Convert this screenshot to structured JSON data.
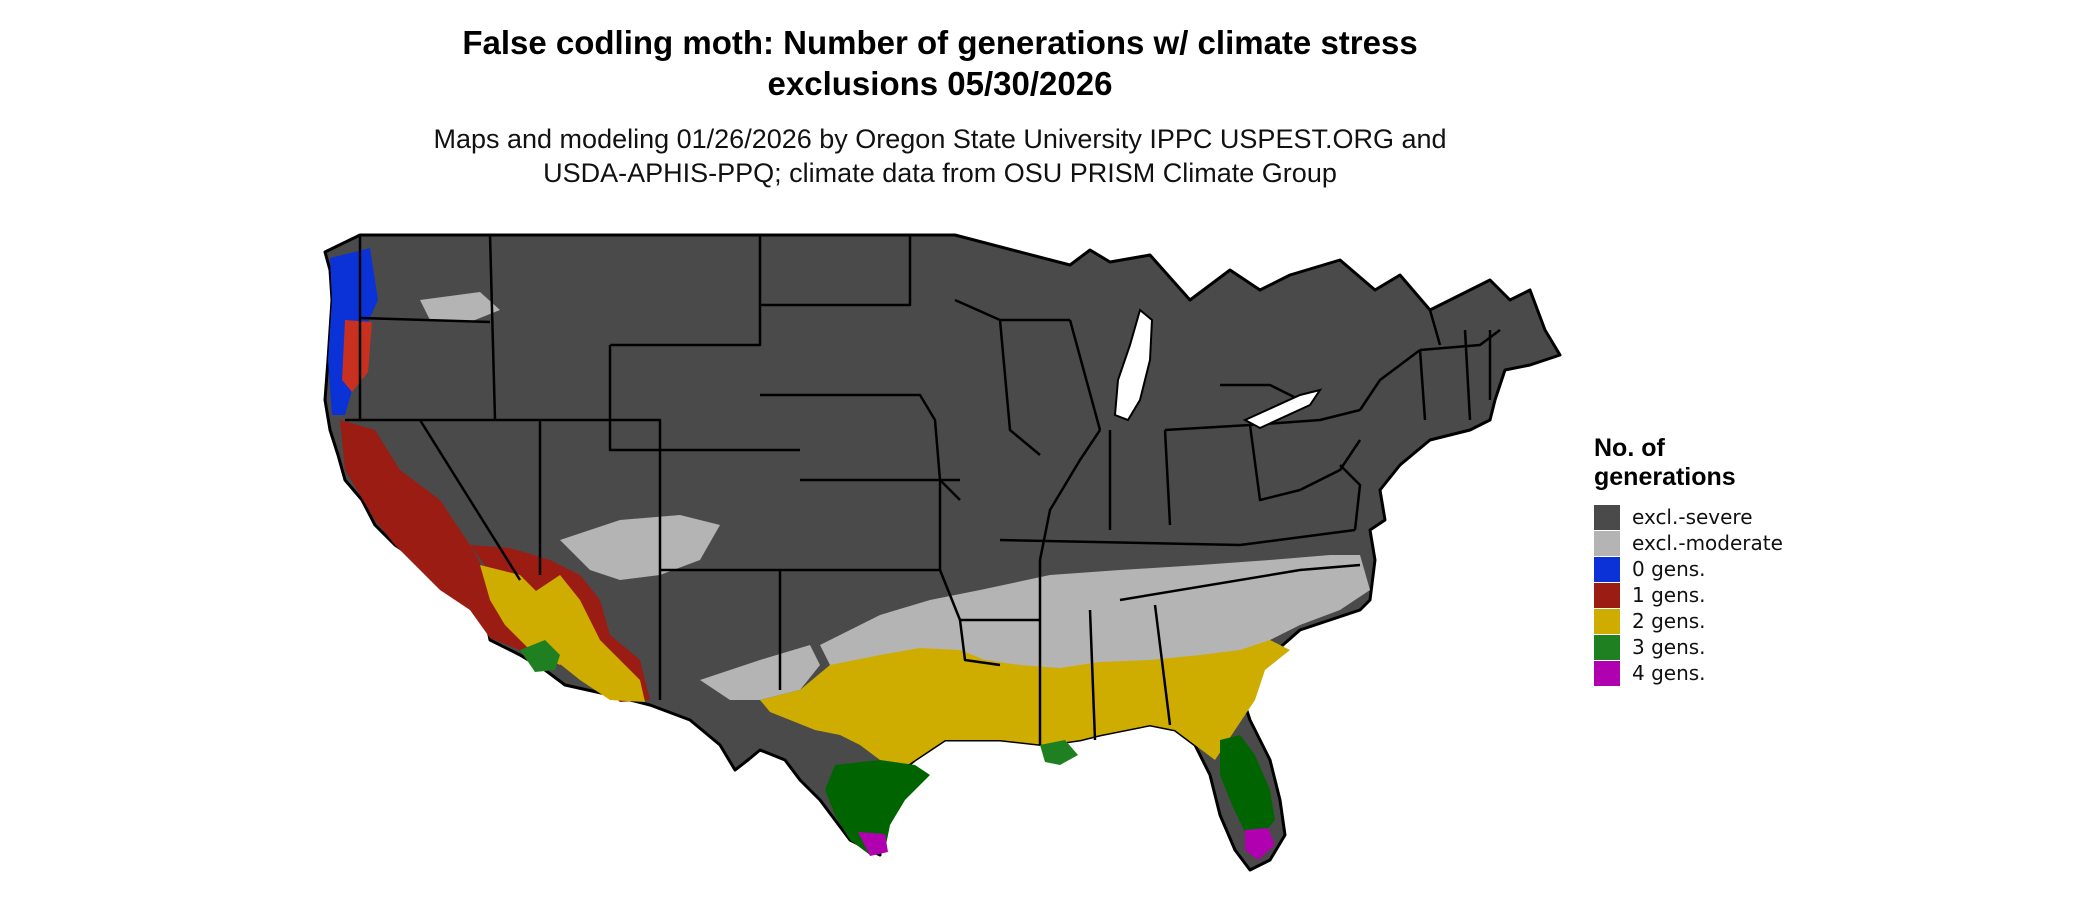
{
  "title_line1": "False codling moth: Number of generations w/ climate stress",
  "title_line2": "exclusions 05/30/2026",
  "subtitle_line1": "Maps and modeling 01/26/2026 by Oregon State University IPPC USPEST.ORG and",
  "subtitle_line2": "USDA-APHIS-PPQ; climate data from OSU PRISM Climate Group",
  "legend": {
    "title_line1": "No. of",
    "title_line2": "generations",
    "items": [
      {
        "label": "excl.-severe",
        "color": "#4a4a4a"
      },
      {
        "label": "excl.-moderate",
        "color": "#b4b4b4"
      },
      {
        "label": "0 gens.",
        "color": "#0a32d6"
      },
      {
        "label": "1 gens.",
        "color": "#9a1c12"
      },
      {
        "label": "2 gens.",
        "color": "#cfad00"
      },
      {
        "label": "3 gens.",
        "color": "#1e8020"
      },
      {
        "label": "4 gens.",
        "color": "#b000b0"
      }
    ]
  }
}
